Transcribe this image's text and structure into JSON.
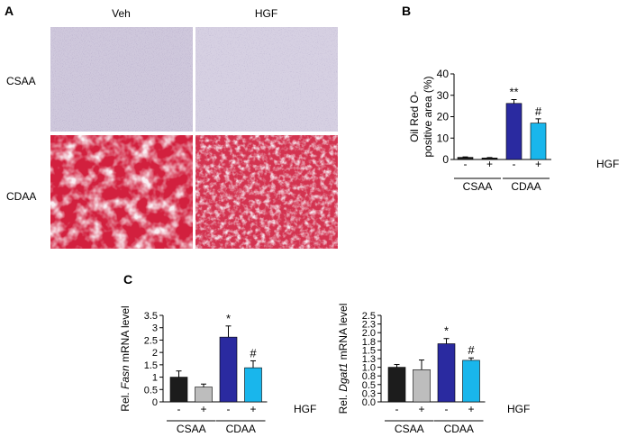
{
  "panels": {
    "a": "A",
    "b": "B",
    "c": "C"
  },
  "micrographs": {
    "columns": [
      "Veh",
      "HGF"
    ],
    "rows": [
      "CSAA",
      "CDAA"
    ]
  },
  "chart_data": [
    {
      "id": "oil-red-o",
      "type": "bar",
      "ylabel_lines": [
        "Oil Red O-",
        "positive area (%)"
      ],
      "ylim": [
        0,
        40
      ],
      "yticks": [
        0,
        10,
        20,
        30,
        40
      ],
      "categories": [
        "-",
        "+",
        "-",
        "+"
      ],
      "groups": [
        {
          "label": "CSAA",
          "span": [
            0,
            1
          ]
        },
        {
          "label": "CDAA",
          "span": [
            2,
            3
          ]
        }
      ],
      "treatment_label": "HGF",
      "values": [
        1.0,
        0.7,
        26.2,
        17.0
      ],
      "errors": [
        0.2,
        0.2,
        1.8,
        2.0
      ],
      "significance": [
        "",
        "",
        "**",
        "#"
      ],
      "colors": [
        "#1c1c1c",
        "#1c1c1c",
        "#2a2aa0",
        "#19b6ec"
      ],
      "grid": false
    },
    {
      "id": "fasn",
      "type": "bar",
      "ylabel_parts": [
        "Rel. ",
        "Fasn",
        " mRNA level"
      ],
      "ylim": [
        0,
        3.5
      ],
      "yticks": [
        0,
        0.5,
        1,
        1.5,
        2,
        2.5,
        3,
        3.5
      ],
      "yticklabels": [
        "0",
        "0.5",
        "1",
        "1.5",
        "2",
        "2.5",
        "3",
        "3.5"
      ],
      "categories": [
        "-",
        "+",
        "-",
        "+"
      ],
      "groups": [
        {
          "label": "CSAA",
          "span": [
            0,
            1
          ]
        },
        {
          "label": "CDAA",
          "span": [
            2,
            3
          ]
        }
      ],
      "treatment_label": "HGF",
      "values": [
        1.0,
        0.6,
        2.62,
        1.38
      ],
      "errors": [
        0.25,
        0.12,
        0.45,
        0.28
      ],
      "significance": [
        "",
        "",
        "*",
        "#"
      ],
      "colors": [
        "#1c1c1c",
        "#bdbdbd",
        "#2a2aa0",
        "#19b6ec"
      ],
      "grid": false
    },
    {
      "id": "dgat1",
      "type": "bar",
      "ylabel_parts": [
        "Rel. ",
        "Dgat1",
        " mRNA level"
      ],
      "ylim": [
        0,
        2.5
      ],
      "yticks": [
        0,
        0.25,
        0.5,
        0.75,
        1,
        1.25,
        1.5,
        1.75,
        2,
        2.25,
        2.5
      ],
      "yticklabels": [
        "0.0",
        "0.3",
        "0.5",
        "0.8",
        "1.0",
        "1.3",
        "1.5",
        "1.8",
        "2.0",
        "2.3",
        "2.5"
      ],
      "categories": [
        "-",
        "+",
        "-",
        "+"
      ],
      "groups": [
        {
          "label": "CSAA",
          "span": [
            0,
            1
          ]
        },
        {
          "label": "CDAA",
          "span": [
            2,
            3
          ]
        }
      ],
      "treatment_label": "HGF",
      "values": [
        1.0,
        0.93,
        1.68,
        1.2
      ],
      "errors": [
        0.08,
        0.28,
        0.15,
        0.07
      ],
      "significance": [
        "",
        "",
        "*",
        "#"
      ],
      "colors": [
        "#1c1c1c",
        "#bdbdbd",
        "#2a2aa0",
        "#19b6ec"
      ],
      "grid": false
    }
  ]
}
